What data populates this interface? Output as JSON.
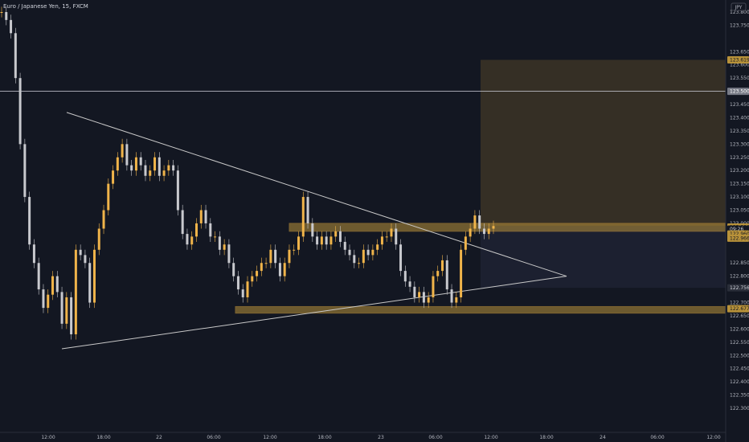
{
  "header": {
    "symbol": "Euro / Japanese Yen, 15, FXCM"
  },
  "currency_badge": "JPY",
  "colors": {
    "background": "#131722",
    "candle": "#c8c9ce",
    "candle_bull": "#f0b44a",
    "zone_fill": "#b8923a",
    "zone_border": "#d4a13c",
    "target_box": "#3a3226",
    "stop_box": "#1c2030",
    "trendline": "#c9c9c9",
    "axis_text": "#b2b5be"
  },
  "chart_data": {
    "type": "candlestick",
    "title": "Euro / Japanese Yen, 15, FXCM",
    "ylim": [
      122.27,
      123.83
    ],
    "y_ticks": [
      "123.800",
      "123.750",
      "123.650",
      "123.600",
      "123.550",
      "123.450",
      "123.400",
      "123.350",
      "123.300",
      "123.250",
      "123.200",
      "123.150",
      "123.100",
      "123.050",
      "123.000",
      "122.850",
      "122.800",
      "122.700",
      "122.650",
      "122.600",
      "122.550",
      "122.500",
      "122.450",
      "122.400",
      "122.350",
      "122.300"
    ],
    "x_ticks": [
      "12:00",
      "18:00",
      "22",
      "06:00",
      "12:00",
      "18:00",
      "23",
      "06:00",
      "12:00",
      "18:00",
      "24",
      "06:00",
      "12:00"
    ],
    "price_labels": [
      {
        "label": "123.619",
        "value": 123.619,
        "kind": "zone"
      },
      {
        "label": "123.500",
        "value": 123.5,
        "kind": "line"
      },
      {
        "label": "122.986",
        "value": 122.986,
        "kind": "zone"
      },
      {
        "label": "09:26",
        "value": 122.978,
        "kind": "countdown"
      },
      {
        "label": "122.960",
        "value": 122.96,
        "kind": "zone"
      },
      {
        "label": "122.966",
        "value": 122.944,
        "kind": "zone"
      },
      {
        "label": "122.756",
        "value": 122.756,
        "kind": "dark"
      },
      {
        "label": "122.677",
        "value": 122.677,
        "kind": "zone"
      }
    ],
    "horizontal_line": 123.5,
    "zones": [
      {
        "from_bar": 0.62,
        "to_bar": 1.0,
        "top": 123.0,
        "bottom": 122.97
      },
      {
        "from_bar": 0.31,
        "to_bar": 1.0,
        "top": 122.685,
        "bottom": 122.66
      }
    ],
    "target_box": {
      "top": 123.619,
      "bottom": 122.99
    },
    "stop_box": {
      "top": 122.99,
      "bottom": 122.756
    },
    "triangle": {
      "upper": [
        {
          "t": "00:00 day22-",
          "price": 123.42
        },
        {
          "t": "apex",
          "price": 122.8
        }
      ],
      "lower": [
        {
          "t": "12:00-",
          "price": 122.525
        },
        {
          "t": "apex",
          "price": 122.8
        }
      ]
    },
    "series": [
      {
        "name": "EUR/JPY",
        "close_path": [
          123.8,
          123.77,
          123.72,
          123.55,
          123.3,
          123.1,
          122.92,
          122.85,
          122.75,
          122.68,
          122.73,
          122.8,
          122.74,
          122.62,
          122.72,
          122.58,
          122.9,
          122.88,
          122.85,
          122.7,
          122.9,
          122.98,
          123.05,
          123.15,
          123.2,
          123.25,
          123.3,
          123.22,
          123.2,
          123.25,
          123.22,
          123.18,
          123.2,
          123.25,
          123.18,
          123.2,
          123.22,
          123.2,
          123.05,
          122.96,
          122.92,
          122.95,
          123.0,
          123.05,
          123.0,
          122.95,
          122.95,
          122.9,
          122.92,
          122.85,
          122.8,
          122.75,
          122.72,
          122.78,
          122.8,
          122.82,
          122.85,
          122.85,
          122.9,
          122.85,
          122.8,
          122.85,
          122.9,
          122.9,
          122.95,
          123.1,
          123.0,
          122.95,
          122.92,
          122.95,
          122.92,
          122.95,
          122.97,
          122.93,
          122.9,
          122.88,
          122.85,
          122.85,
          122.9,
          122.88,
          122.9,
          122.92,
          122.95,
          122.95,
          122.98,
          122.92,
          122.82,
          122.78,
          122.76,
          122.72,
          122.74,
          122.7,
          122.72,
          122.8,
          122.82,
          122.86,
          122.75,
          122.7,
          122.72,
          122.9,
          122.95,
          122.98,
          123.03,
          122.98,
          122.96,
          122.98,
          122.99
        ]
      }
    ]
  }
}
